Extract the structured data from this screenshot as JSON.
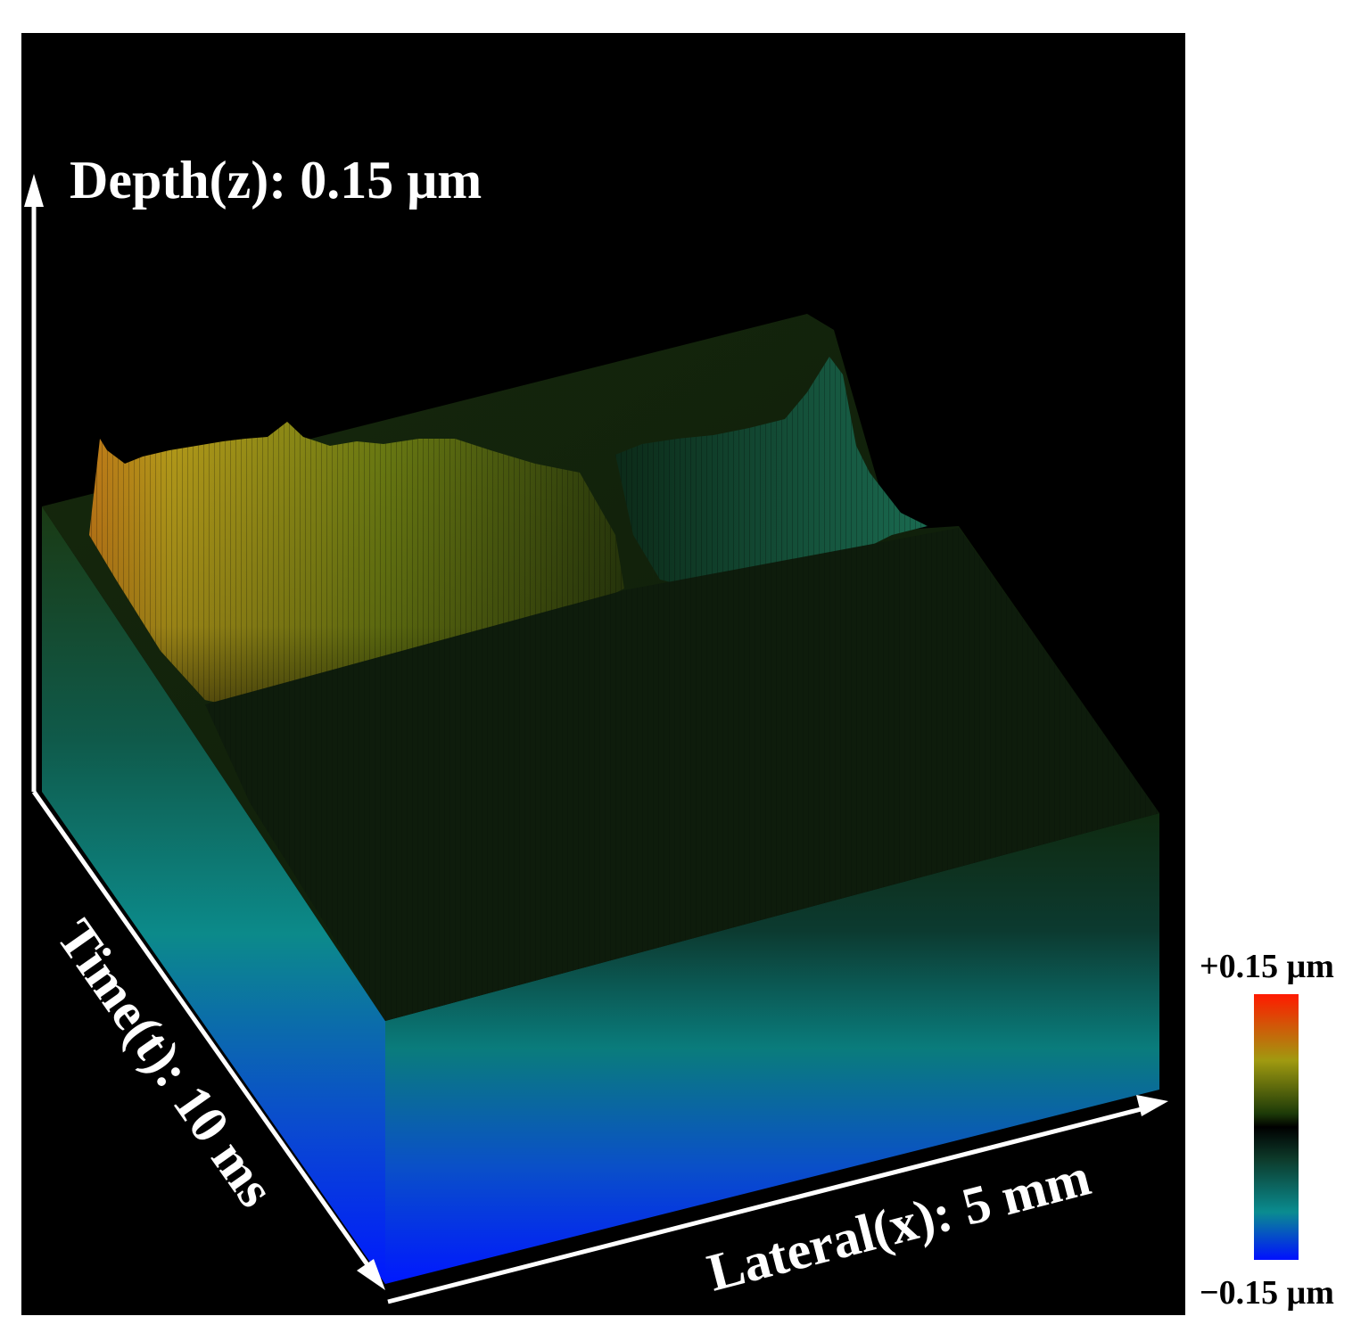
{
  "axes": {
    "depth_label": "Depth(z): 0.15 μm",
    "time_label": "Time(t): 10 ms",
    "lateral_label": "Lateral(x): 5 mm"
  },
  "colorbar": {
    "max_label": "+0.15 μm",
    "min_label": "−0.15 μm",
    "stops": [
      {
        "pos": 0.0,
        "color": "#ff1a00"
      },
      {
        "pos": 0.25,
        "color": "#a09a10"
      },
      {
        "pos": 0.45,
        "color": "#1c3a08"
      },
      {
        "pos": 0.5,
        "color": "#000000"
      },
      {
        "pos": 0.62,
        "color": "#0d3a2a"
      },
      {
        "pos": 0.82,
        "color": "#0a8c90"
      },
      {
        "pos": 1.0,
        "color": "#0010ff"
      }
    ]
  },
  "colors": {
    "background": "#000000",
    "axis": "#ffffff",
    "text": "#ffffff",
    "colorbar_text": "#000000"
  }
}
